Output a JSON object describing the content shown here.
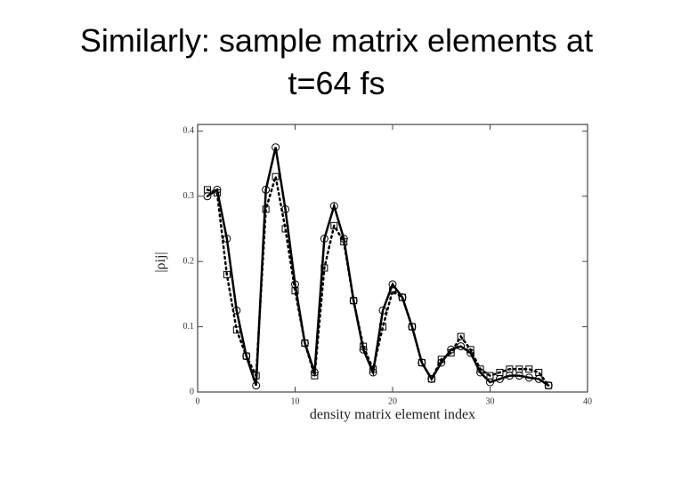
{
  "chart_data": {
    "type": "line",
    "title": [
      "Similarly: sample matrix elements at",
      "t=64 fs"
    ],
    "x_label": "density matrix element index",
    "y_label": "|ρij|",
    "x": [
      1,
      2,
      3,
      4,
      5,
      6,
      7,
      8,
      9,
      10,
      11,
      12,
      13,
      14,
      15,
      16,
      17,
      18,
      19,
      20,
      21,
      22,
      23,
      24,
      25,
      26,
      27,
      28,
      29,
      30,
      31,
      32,
      33,
      34,
      35,
      36
    ],
    "series": [
      {
        "color": "#000000",
        "line": "solid",
        "marker": "circle",
        "values": [
          0.3,
          0.31,
          0.235,
          0.125,
          0.055,
          0.01,
          0.31,
          0.375,
          0.28,
          0.165,
          0.075,
          0.03,
          0.235,
          0.285,
          0.235,
          0.14,
          0.065,
          0.03,
          0.125,
          0.165,
          0.145,
          0.1,
          0.045,
          0.02,
          0.045,
          0.065,
          0.07,
          0.06,
          0.03,
          0.015,
          0.02,
          0.025,
          0.025,
          0.022,
          0.02,
          0.01
        ]
      },
      {
        "color": "#000000",
        "line": "dotted",
        "marker": "square",
        "values": [
          0.31,
          0.305,
          0.18,
          0.095,
          0.055,
          0.025,
          0.28,
          0.33,
          0.25,
          0.155,
          0.075,
          0.025,
          0.19,
          0.255,
          0.23,
          0.14,
          0.07,
          0.035,
          0.1,
          0.155,
          0.145,
          0.1,
          0.045,
          0.02,
          0.05,
          0.06,
          0.085,
          0.065,
          0.035,
          0.025,
          0.03,
          0.035,
          0.035,
          0.035,
          0.03,
          0.01
        ]
      }
    ],
    "xlim": [
      0,
      40
    ],
    "ylim": [
      0,
      0.41
    ],
    "xticks": [
      0,
      10,
      20,
      30,
      40
    ],
    "yticks": [
      0,
      0.1,
      0.2,
      0.3,
      0.4
    ]
  }
}
